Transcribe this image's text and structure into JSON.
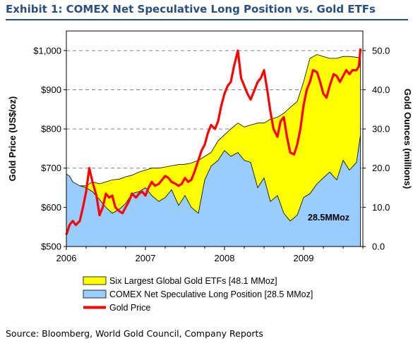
{
  "header": {
    "title": "Exhibit 1: COMEX Net Speculative Long Position vs. Gold ETFs"
  },
  "footer": {
    "source": "Source: Bloomberg, World Gold Council, Company Reports"
  },
  "colors": {
    "title": "#2a4f7e",
    "etf_fill": "#ffff00",
    "comex_fill": "#99ccff",
    "gold_line": "#ff0000",
    "gridline": "#808080"
  },
  "chart_data": {
    "type": "area",
    "x_axis": {
      "ticks": [
        "2006",
        "2007",
        "2008",
        "2009"
      ],
      "range": [
        2006.0,
        2009.75
      ]
    },
    "y_left": {
      "label": "Gold Price (US$/oz)",
      "ticks": [
        "$500",
        "$600",
        "$700",
        "$800",
        "$900",
        "$1,000"
      ],
      "range": [
        500,
        1050
      ]
    },
    "y_right": {
      "label": "Gold Ounces (millions)",
      "ticks": [
        "0.0",
        "10.0",
        "20.0",
        "30.0",
        "40.0",
        "50.0"
      ],
      "range": [
        0,
        55
      ]
    },
    "grid": "horizontal dashed at major ticks",
    "legend": {
      "placement": "bottom"
    },
    "annotation": "28.5MMoz",
    "series": [
      {
        "name": "Six Largest Global Gold ETFs [48.1 MMoz]",
        "kind": "area",
        "axis": "right",
        "x": [
          2006.0,
          2006.08,
          2006.17,
          2006.25,
          2006.33,
          2006.42,
          2006.5,
          2006.58,
          2006.67,
          2006.75,
          2006.83,
          2006.92,
          2007.0,
          2007.08,
          2007.17,
          2007.25,
          2007.33,
          2007.42,
          2007.5,
          2007.58,
          2007.67,
          2007.75,
          2007.83,
          2007.92,
          2008.0,
          2008.08,
          2008.17,
          2008.25,
          2008.33,
          2008.42,
          2008.5,
          2008.58,
          2008.67,
          2008.75,
          2008.83,
          2008.92,
          2009.0,
          2009.08,
          2009.17,
          2009.25,
          2009.33,
          2009.42,
          2009.5,
          2009.58,
          2009.67,
          2009.72
        ],
        "values": [
          16.0,
          16.0,
          15.5,
          15.5,
          16.5,
          16.0,
          16.5,
          17.0,
          17.2,
          17.8,
          18.2,
          19.0,
          19.5,
          20.0,
          20.0,
          20.3,
          20.6,
          20.9,
          21.0,
          21.3,
          22.0,
          23.0,
          24.0,
          27.0,
          28.5,
          30.0,
          31.5,
          30.5,
          31.0,
          31.5,
          31.5,
          32.5,
          33.0,
          34.0,
          35.5,
          37.0,
          42.0,
          48.0,
          49.0,
          48.5,
          48.0,
          48.0,
          48.5,
          48.5,
          48.3,
          48.1
        ]
      },
      {
        "name": "COMEX Net Speculative Long Position [28.5 MMoz]",
        "kind": "area",
        "axis": "right",
        "x": [
          2006.0,
          2006.04,
          2006.08,
          2006.17,
          2006.25,
          2006.33,
          2006.42,
          2006.5,
          2006.58,
          2006.67,
          2006.75,
          2006.83,
          2006.92,
          2007.0,
          2007.08,
          2007.17,
          2007.25,
          2007.33,
          2007.42,
          2007.5,
          2007.58,
          2007.67,
          2007.75,
          2007.83,
          2007.92,
          2008.0,
          2008.08,
          2008.17,
          2008.25,
          2008.33,
          2008.42,
          2008.5,
          2008.58,
          2008.67,
          2008.75,
          2008.83,
          2008.92,
          2009.0,
          2009.08,
          2009.17,
          2009.25,
          2009.33,
          2009.42,
          2009.5,
          2009.58,
          2009.67,
          2009.72
        ],
        "values": [
          18.5,
          18.0,
          16.5,
          15.5,
          15.0,
          14.0,
          12.0,
          10.0,
          8.5,
          9.5,
          11.0,
          13.5,
          14.0,
          15.0,
          13.0,
          11.5,
          12.5,
          14.5,
          10.5,
          13.0,
          10.0,
          8.5,
          17.0,
          20.5,
          22.0,
          24.5,
          23.0,
          24.0,
          22.0,
          21.5,
          15.0,
          17.5,
          11.5,
          13.0,
          8.5,
          6.5,
          8.0,
          12.5,
          13.5,
          16.0,
          17.5,
          19.0,
          17.0,
          22.0,
          19.5,
          21.5,
          28.5
        ]
      },
      {
        "name": "Gold Price",
        "kind": "line",
        "axis": "left",
        "x": [
          2006.0,
          2006.04,
          2006.08,
          2006.12,
          2006.17,
          2006.21,
          2006.25,
          2006.29,
          2006.33,
          2006.38,
          2006.42,
          2006.46,
          2006.5,
          2006.54,
          2006.58,
          2006.62,
          2006.67,
          2006.71,
          2006.75,
          2006.79,
          2006.83,
          2006.88,
          2006.92,
          2006.96,
          2007.0,
          2007.04,
          2007.08,
          2007.12,
          2007.17,
          2007.21,
          2007.25,
          2007.29,
          2007.33,
          2007.38,
          2007.42,
          2007.46,
          2007.5,
          2007.54,
          2007.58,
          2007.62,
          2007.67,
          2007.71,
          2007.75,
          2007.79,
          2007.83,
          2007.88,
          2007.92,
          2007.96,
          2008.0,
          2008.04,
          2008.08,
          2008.12,
          2008.17,
          2008.21,
          2008.25,
          2008.29,
          2008.33,
          2008.38,
          2008.42,
          2008.46,
          2008.5,
          2008.54,
          2008.58,
          2008.62,
          2008.67,
          2008.71,
          2008.75,
          2008.79,
          2008.83,
          2008.88,
          2008.92,
          2008.96,
          2009.0,
          2009.04,
          2009.08,
          2009.12,
          2009.17,
          2009.21,
          2009.25,
          2009.29,
          2009.33,
          2009.38,
          2009.42,
          2009.46,
          2009.5,
          2009.54,
          2009.58,
          2009.62,
          2009.67,
          2009.7,
          2009.72
        ],
        "values": [
          530,
          555,
          565,
          555,
          565,
          600,
          640,
          700,
          665,
          630,
          580,
          600,
          635,
          625,
          630,
          600,
          590,
          585,
          600,
          615,
          635,
          625,
          635,
          640,
          630,
          650,
          665,
          655,
          660,
          670,
          680,
          675,
          665,
          660,
          655,
          660,
          675,
          665,
          670,
          690,
          720,
          745,
          760,
          790,
          810,
          800,
          820,
          860,
          890,
          910,
          920,
          960,
          1000,
          930,
          910,
          890,
          875,
          900,
          920,
          930,
          950,
          900,
          845,
          800,
          780,
          820,
          830,
          780,
          740,
          735,
          760,
          800,
          860,
          900,
          920,
          950,
          945,
          920,
          890,
          880,
          910,
          940,
          935,
          920,
          935,
          950,
          940,
          950,
          950,
          960,
          1005
        ]
      }
    ]
  }
}
